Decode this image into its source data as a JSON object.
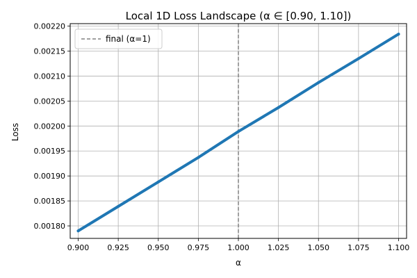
{
  "chart_data": {
    "type": "line",
    "title": "Local 1D Loss Landscape (α ∈ [0.90, 1.10])",
    "xlabel": "α",
    "ylabel": "Loss",
    "xlim": [
      0.895,
      1.105
    ],
    "ylim": [
      0.001775,
      0.002205
    ],
    "xticks": [
      0.9,
      0.925,
      0.95,
      0.975,
      1.0,
      1.025,
      1.05,
      1.075,
      1.1
    ],
    "xtick_labels": [
      "0.900",
      "0.925",
      "0.950",
      "0.975",
      "1.000",
      "1.025",
      "1.050",
      "1.075",
      "1.100"
    ],
    "yticks": [
      0.0018,
      0.00185,
      0.0019,
      0.00195,
      0.002,
      0.00205,
      0.0021,
      0.00215,
      0.0022
    ],
    "ytick_labels": [
      "0.00180",
      "0.00185",
      "0.00190",
      "0.00195",
      "0.00200",
      "0.00205",
      "0.00210",
      "0.00215",
      "0.00220"
    ],
    "grid": true,
    "series": [
      {
        "color": "#1f77b4",
        "x": [
          0.9,
          0.925,
          0.95,
          0.975,
          1.0,
          1.025,
          1.05,
          1.075,
          1.1
        ],
        "y": [
          0.00179,
          0.001839,
          0.001888,
          0.001937,
          0.001989,
          0.002037,
          0.002087,
          0.002135,
          0.002184
        ]
      }
    ],
    "vline": {
      "x": 1.0,
      "color": "#808080",
      "label": "final (α=1)"
    },
    "legend": {
      "position": "top-left",
      "entries": [
        "final (α=1)"
      ]
    }
  }
}
